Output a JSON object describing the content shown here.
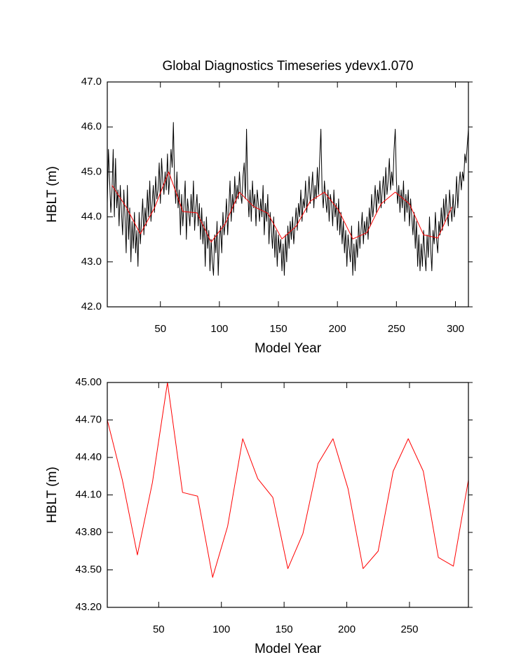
{
  "chart_data": [
    {
      "type": "line",
      "title": "Global Diagnostics Timeseries ydevx1.070",
      "x_label": "Model Year",
      "y_label": "HBLT (m)",
      "xlim": [
        5,
        311
      ],
      "xticks": [
        50,
        100,
        150,
        200,
        250,
        300
      ],
      "ylim": [
        42,
        47
      ],
      "yticks": [
        {
          "value": 42,
          "label": "42.0"
        },
        {
          "value": 43,
          "label": "43.0"
        },
        {
          "value": 44,
          "label": "44.0"
        },
        {
          "value": 45,
          "label": "45.0"
        },
        {
          "value": 46,
          "label": "46.0"
        },
        {
          "value": 47,
          "label": "47.0"
        }
      ],
      "series": [
        {
          "color": "#000000",
          "x": [
            5,
            6,
            7,
            8,
            9,
            10,
            11,
            12,
            13,
            14,
            15,
            16,
            17,
            18,
            19,
            20,
            21,
            22,
            23,
            24,
            25,
            26,
            27,
            28,
            29,
            30,
            31,
            32,
            33,
            34,
            35,
            36,
            37,
            38,
            39,
            40,
            41,
            42,
            43,
            44,
            45,
            46,
            47,
            48,
            49,
            50,
            51,
            52,
            53,
            54,
            55,
            56,
            57,
            58,
            59,
            60,
            61,
            62,
            63,
            64,
            65,
            66,
            67,
            68,
            69,
            70,
            71,
            72,
            73,
            74,
            75,
            76,
            77,
            78,
            79,
            80,
            81,
            82,
            83,
            84,
            85,
            86,
            87,
            88,
            89,
            90,
            91,
            92,
            93,
            94,
            95,
            96,
            97,
            98,
            99,
            100,
            101,
            102,
            103,
            104,
            105,
            106,
            107,
            108,
            109,
            110,
            111,
            112,
            113,
            114,
            115,
            116,
            117,
            118,
            119,
            120,
            121,
            122,
            123,
            124,
            125,
            126,
            127,
            128,
            129,
            130,
            131,
            132,
            133,
            134,
            135,
            136,
            137,
            138,
            139,
            140,
            141,
            142,
            143,
            144,
            145,
            146,
            147,
            148,
            149,
            150,
            151,
            152,
            153,
            154,
            155,
            156,
            157,
            158,
            159,
            160,
            161,
            162,
            163,
            164,
            165,
            166,
            167,
            168,
            169,
            170,
            171,
            172,
            173,
            174,
            175,
            176,
            177,
            178,
            179,
            180,
            181,
            182,
            183,
            184,
            185,
            186,
            187,
            188,
            189,
            190,
            191,
            192,
            193,
            194,
            195,
            196,
            197,
            198,
            199,
            200,
            201,
            202,
            203,
            204,
            205,
            206,
            207,
            208,
            209,
            210,
            211,
            212,
            213,
            214,
            215,
            216,
            217,
            218,
            219,
            220,
            221,
            222,
            223,
            224,
            225,
            226,
            227,
            228,
            229,
            230,
            231,
            232,
            233,
            234,
            235,
            236,
            237,
            238,
            239,
            240,
            241,
            242,
            243,
            244,
            245,
            246,
            247,
            248,
            249,
            250,
            251,
            252,
            253,
            254,
            255,
            256,
            257,
            258,
            259,
            260,
            261,
            262,
            263,
            264,
            265,
            266,
            267,
            268,
            269,
            270,
            271,
            272,
            273,
            274,
            275,
            276,
            277,
            278,
            279,
            280,
            281,
            282,
            283,
            284,
            285,
            286,
            287,
            288,
            289,
            290,
            291,
            292,
            293,
            294,
            295,
            296,
            297,
            298,
            299,
            300,
            301,
            302,
            303,
            304,
            305,
            306,
            307,
            308,
            309,
            310,
            311
          ],
          "values": [
            44.3,
            45.5,
            44.8,
            44.1,
            44.6,
            45.5,
            44.0,
            45.3,
            44.2,
            44.6,
            43.8,
            44.7,
            44.1,
            43.6,
            44.6,
            44.0,
            43.2,
            44.7,
            43.5,
            44.2,
            43.0,
            43.9,
            43.3,
            44.1,
            43.2,
            43.7,
            42.9,
            44.1,
            43.4,
            43.9,
            44.4,
            43.6,
            44.2,
            43.8,
            44.6,
            44.0,
            44.8,
            43.9,
            44.3,
            44.7,
            44.1,
            44.9,
            44.4,
            44.6,
            45.2,
            44.3,
            45.3,
            44.8,
            44.5,
            45.0,
            44.6,
            45.4,
            44.5,
            44.9,
            45.5,
            45.1,
            46.1,
            44.8,
            44.3,
            45.0,
            44.2,
            44.6,
            43.6,
            44.5,
            43.8,
            44.3,
            44.8,
            43.5,
            44.4,
            44.1,
            43.8,
            44.5,
            44.0,
            44.8,
            43.7,
            44.2,
            44.5,
            43.8,
            44.3,
            43.5,
            44.2,
            43.4,
            43.9,
            42.9,
            44.0,
            43.3,
            43.7,
            42.8,
            43.5,
            43.0,
            42.7,
            43.6,
            43.2,
            43.9,
            42.7,
            43.5,
            43.8,
            43.2,
            44.1,
            43.6,
            43.9,
            44.4,
            43.6,
            44.2,
            44.8,
            43.9,
            44.5,
            44.1,
            44.9,
            44.3,
            44.7,
            44.4,
            45.0,
            44.5,
            44.3,
            44.9,
            45.2,
            44.4,
            45.95,
            44.6,
            44.0,
            44.6,
            43.9,
            44.8,
            44.2,
            44.5,
            43.8,
            44.6,
            44.3,
            43.9,
            44.4,
            44.0,
            44.7,
            43.6,
            44.3,
            43.9,
            44.5,
            43.4,
            44.1,
            43.7,
            43.3,
            44.0,
            43.1,
            43.7,
            42.9,
            43.6,
            43.2,
            43.5,
            42.8,
            43.4,
            42.7,
            43.6,
            43.0,
            43.8,
            43.3,
            43.9,
            43.5,
            44.0,
            43.4,
            43.8,
            44.2,
            43.7,
            44.3,
            44.0,
            44.6,
            43.9,
            44.4,
            44.2,
            44.8,
            44.1,
            44.5,
            44.9,
            44.3,
            44.6,
            45.0,
            44.2,
            44.7,
            44.4,
            45.1,
            44.5,
            45.3,
            45.95,
            44.6,
            44.2,
            44.8,
            44.4,
            44.1,
            44.6,
            43.9,
            44.5,
            44.3,
            43.8,
            44.6,
            44.0,
            44.3,
            43.7,
            44.4,
            43.6,
            44.1,
            43.4,
            43.9,
            43.2,
            43.7,
            42.9,
            43.6,
            43.3,
            43.0,
            43.8,
            42.7,
            43.4,
            42.8,
            43.5,
            43.1,
            43.9,
            43.3,
            43.7,
            44.1,
            43.4,
            43.9,
            43.6,
            44.0,
            43.5,
            44.2,
            43.8,
            44.5,
            44.0,
            44.3,
            44.7,
            44.1,
            44.6,
            44.3,
            44.8,
            44.2,
            44.6,
            44.9,
            44.3,
            45.1,
            44.5,
            44.8,
            45.3,
            44.6,
            45.0,
            44.7,
            45.5,
            45.95,
            44.8,
            44.3,
            44.7,
            44.1,
            44.6,
            44.2,
            44.8,
            43.9,
            44.5,
            44.1,
            44.6,
            43.8,
            44.4,
            44.0,
            43.6,
            44.1,
            43.3,
            43.9,
            42.9,
            43.6,
            42.8,
            43.4,
            42.9,
            43.7,
            43.2,
            42.8,
            43.6,
            43.1,
            44.0,
            43.3,
            42.8,
            43.7,
            43.4,
            44.1,
            43.5,
            43.2,
            43.9,
            43.6,
            44.2,
            43.7,
            44.4,
            43.9,
            44.5,
            44.1,
            43.8,
            44.6,
            44.2,
            43.9,
            44.5,
            44.0,
            44.3,
            44.9,
            44.2,
            44.7,
            45.0,
            44.6,
            45.0,
            44.8,
            45.4,
            45.2,
            45.6,
            45.95
          ]
        },
        {
          "color": "#ff0000",
          "x": [
            9,
            21,
            33,
            45,
            57,
            69,
            81,
            93,
            105,
            117,
            129,
            141,
            153,
            165,
            177,
            189,
            201,
            213,
            225,
            237,
            249,
            261,
            273,
            285,
            297
          ],
          "values": [
            44.7,
            44.22,
            43.62,
            44.2,
            45.0,
            44.12,
            44.09,
            43.44,
            43.85,
            44.55,
            44.23,
            44.08,
            43.51,
            43.79,
            44.35,
            44.55,
            44.15,
            43.51,
            43.65,
            44.29,
            44.55,
            44.29,
            43.6,
            43.53,
            44.22
          ]
        }
      ]
    },
    {
      "type": "line",
      "x_label": "Model Year",
      "y_label": "HBLT (m)",
      "xlim": [
        9,
        297
      ],
      "xticks": [
        50,
        100,
        150,
        200,
        250
      ],
      "ylim": [
        43.2,
        45
      ],
      "yticks": [
        {
          "value": 43.2,
          "label": "43.20"
        },
        {
          "value": 43.5,
          "label": "43.50"
        },
        {
          "value": 43.8,
          "label": "43.80"
        },
        {
          "value": 44.1,
          "label": "44.10"
        },
        {
          "value": 44.4,
          "label": "44.40"
        },
        {
          "value": 44.7,
          "label": "44.70"
        },
        {
          "value": 45,
          "label": "45.00"
        }
      ],
      "series": [
        {
          "color": "#ff0000",
          "x": [
            9,
            21,
            33,
            45,
            57,
            69,
            81,
            93,
            105,
            117,
            129,
            141,
            153,
            165,
            177,
            189,
            201,
            213,
            225,
            237,
            249,
            261,
            273,
            285,
            297
          ],
          "values": [
            44.7,
            44.22,
            43.62,
            44.2,
            45.0,
            44.12,
            44.09,
            43.44,
            43.85,
            44.55,
            44.23,
            44.08,
            43.51,
            43.79,
            44.35,
            44.55,
            44.15,
            43.51,
            43.65,
            44.29,
            44.55,
            44.29,
            43.6,
            43.53,
            44.22
          ]
        }
      ]
    }
  ]
}
